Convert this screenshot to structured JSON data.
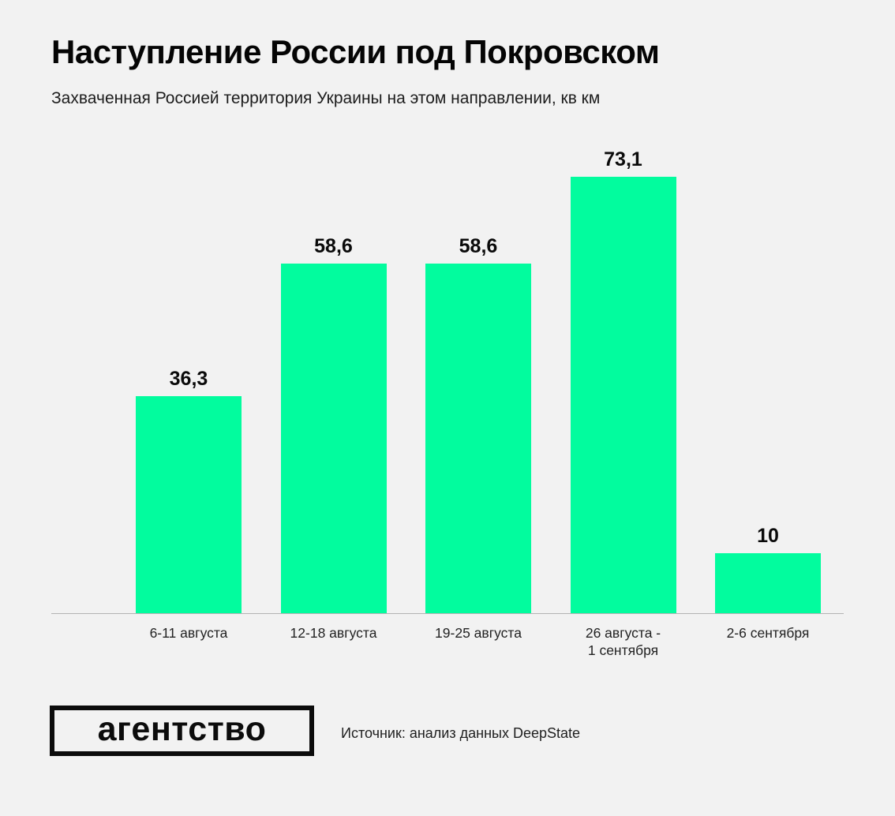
{
  "header": {
    "title": "Наступление России под Покровском",
    "subtitle": "Захваченная Россией территория Украины на этом направлении, кв км"
  },
  "chart_data": {
    "type": "bar",
    "title": "Наступление России под Покровском",
    "subtitle": "Захваченная Россией территория Украины на этом направлении, кв км",
    "unit": "кв км",
    "categories": [
      "6-11 августа",
      "12-18 августа",
      "19-25 августа",
      "26 августа -\n1 сентября",
      "2-6 сентября"
    ],
    "values": [
      36.3,
      58.6,
      58.6,
      73.1,
      10
    ],
    "value_labels": [
      "36,3",
      "58,6",
      "58,6",
      "73,1",
      "10"
    ],
    "ylim": [
      0,
      73.1
    ],
    "grid": false,
    "legend": false,
    "bar_color": "#02fc9e"
  },
  "footer": {
    "logo_text": "агентство",
    "source": "Источник: анализ данных DeepState"
  },
  "colors": {
    "background": "#f2f2f2",
    "bar": "#02fc9e",
    "axis_line": "#b3b3b3",
    "text": "#0d0d0d"
  }
}
